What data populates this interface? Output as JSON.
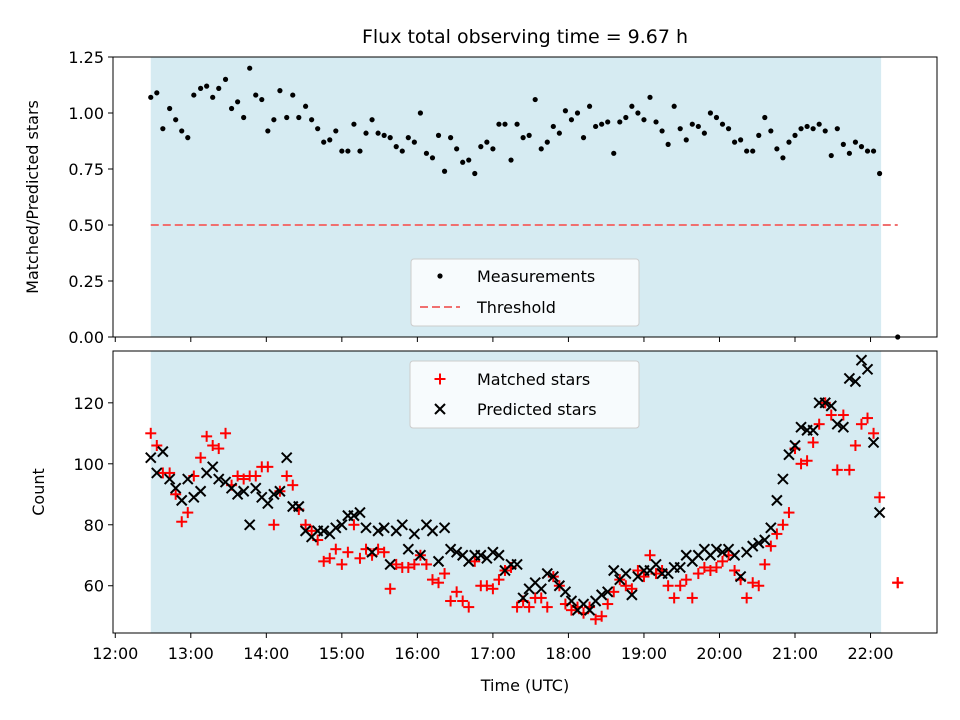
{
  "chart_data": [
    {
      "type": "scatter",
      "title": "Flux total observing time = 9.67 h",
      "xlabel": "",
      "ylabel": "Matched/Predicted stars",
      "ylim": [
        0,
        1.25
      ],
      "yticks": [
        "0.00",
        "0.25",
        "0.50",
        "0.75",
        "1.00",
        "1.25"
      ],
      "xlim_hours": [
        11.97,
        22.88
      ],
      "observing_window_hours": [
        12.47,
        22.14
      ],
      "legend_position": "lower-center",
      "threshold": 0.5,
      "series": [
        {
          "name": "Measurements",
          "color": "#000000",
          "marker": "dot",
          "x": [
            12.47,
            12.55,
            12.63,
            12.72,
            12.8,
            12.88,
            12.96,
            13.04,
            13.13,
            13.21,
            13.29,
            13.37,
            13.46,
            13.54,
            13.62,
            13.7,
            13.78,
            13.86,
            13.94,
            14.02,
            14.1,
            14.18,
            14.27,
            14.35,
            14.43,
            14.52,
            14.6,
            14.68,
            14.76,
            14.84,
            14.92,
            15.0,
            15.08,
            15.16,
            15.24,
            15.32,
            15.4,
            15.48,
            15.56,
            15.64,
            15.72,
            15.8,
            15.88,
            15.96,
            16.04,
            16.12,
            16.2,
            16.28,
            16.36,
            16.44,
            16.52,
            16.6,
            16.68,
            16.76,
            16.84,
            16.92,
            17.0,
            17.08,
            17.16,
            17.24,
            17.32,
            17.4,
            17.48,
            17.56,
            17.64,
            17.72,
            17.8,
            17.88,
            17.96,
            18.04,
            18.12,
            18.2,
            18.28,
            18.36,
            18.44,
            18.52,
            18.6,
            18.68,
            18.76,
            18.84,
            18.92,
            19.0,
            19.08,
            19.16,
            19.24,
            19.32,
            19.4,
            19.48,
            19.56,
            19.64,
            19.72,
            19.8,
            19.88,
            19.96,
            20.04,
            20.12,
            20.2,
            20.28,
            20.36,
            20.44,
            20.52,
            20.6,
            20.68,
            20.76,
            20.84,
            20.92,
            21.0,
            21.08,
            21.16,
            21.24,
            21.32,
            21.4,
            21.48,
            21.56,
            21.64,
            21.72,
            21.8,
            21.88,
            21.96,
            22.04,
            22.12,
            22.36
          ],
          "y": [
            1.07,
            1.09,
            0.93,
            1.02,
            0.97,
            0.92,
            0.89,
            1.08,
            1.11,
            1.12,
            1.07,
            1.11,
            1.15,
            1.02,
            1.05,
            0.98,
            1.2,
            1.08,
            1.06,
            0.92,
            0.97,
            1.1,
            0.98,
            1.08,
            0.98,
            1.03,
            0.97,
            0.93,
            0.87,
            0.88,
            0.92,
            0.83,
            0.83,
            0.95,
            0.83,
            0.91,
            0.97,
            0.91,
            0.9,
            0.89,
            0.85,
            0.83,
            0.89,
            0.87,
            1.0,
            0.82,
            0.8,
            0.9,
            0.74,
            0.89,
            0.84,
            0.78,
            0.79,
            0.73,
            0.85,
            0.87,
            0.84,
            0.95,
            0.95,
            0.79,
            0.95,
            0.89,
            0.9,
            1.06,
            0.84,
            0.87,
            0.94,
            0.91,
            1.01,
            0.97,
            1.0,
            0.89,
            1.03,
            0.94,
            0.95,
            0.96,
            0.82,
            0.96,
            0.98,
            1.03,
            1.0,
            0.97,
            1.07,
            0.96,
            0.92,
            0.86,
            1.03,
            0.93,
            0.88,
            0.95,
            0.94,
            0.91,
            1.0,
            0.98,
            0.95,
            0.93,
            0.87,
            0.88,
            0.83,
            0.83,
            0.9,
            0.98,
            0.92,
            0.84,
            0.8,
            0.87,
            0.9,
            0.93,
            0.94,
            0.93,
            0.95,
            0.92,
            0.81,
            0.93,
            0.86,
            0.82,
            0.87,
            0.85,
            0.83,
            0.83,
            0.73,
            0.0
          ]
        },
        {
          "name": "Threshold",
          "color": "#f07070",
          "style": "dashed",
          "x": [
            12.47,
            22.36
          ],
          "y": [
            0.5,
            0.5
          ]
        }
      ]
    },
    {
      "type": "scatter",
      "title": "",
      "xlabel": "Time (UTC)",
      "ylabel": "Count",
      "ylim": [
        44.5,
        137
      ],
      "yticks": [
        "60",
        "80",
        "100",
        "120"
      ],
      "xlim_hours": [
        11.97,
        22.88
      ],
      "xticks": [
        "12:00",
        "13:00",
        "14:00",
        "15:00",
        "16:00",
        "17:00",
        "18:00",
        "19:00",
        "20:00",
        "21:00",
        "22:00"
      ],
      "observing_window_hours": [
        12.47,
        22.14
      ],
      "legend_position": "upper-center",
      "series": [
        {
          "name": "Matched stars",
          "color": "#ff0000",
          "marker": "plus",
          "x": [
            12.47,
            12.55,
            12.63,
            12.72,
            12.8,
            12.88,
            12.96,
            13.04,
            13.13,
            13.21,
            13.29,
            13.37,
            13.46,
            13.54,
            13.62,
            13.7,
            13.78,
            13.86,
            13.94,
            14.02,
            14.1,
            14.18,
            14.27,
            14.35,
            14.43,
            14.52,
            14.6,
            14.68,
            14.76,
            14.84,
            14.92,
            15.0,
            15.08,
            15.16,
            15.24,
            15.32,
            15.4,
            15.48,
            15.56,
            15.64,
            15.72,
            15.8,
            15.88,
            15.96,
            16.04,
            16.12,
            16.2,
            16.28,
            16.36,
            16.44,
            16.52,
            16.6,
            16.68,
            16.76,
            16.84,
            16.92,
            17.0,
            17.08,
            17.16,
            17.24,
            17.32,
            17.4,
            17.48,
            17.56,
            17.64,
            17.72,
            17.8,
            17.88,
            17.96,
            18.04,
            18.12,
            18.2,
            18.28,
            18.36,
            18.44,
            18.52,
            18.6,
            18.68,
            18.76,
            18.84,
            18.92,
            19.0,
            19.08,
            19.16,
            19.24,
            19.32,
            19.4,
            19.48,
            19.56,
            19.64,
            19.72,
            19.8,
            19.88,
            19.96,
            20.04,
            20.12,
            20.2,
            20.28,
            20.36,
            20.44,
            20.52,
            20.6,
            20.68,
            20.76,
            20.84,
            20.92,
            21.0,
            21.08,
            21.16,
            21.24,
            21.32,
            21.4,
            21.48,
            21.56,
            21.64,
            21.72,
            21.8,
            21.88,
            21.96,
            22.04,
            22.12,
            22.36
          ],
          "y": [
            110,
            106,
            97,
            97,
            90,
            81,
            84,
            96,
            102,
            109,
            106,
            105,
            110,
            93,
            96,
            95,
            96,
            96,
            99,
            99,
            80,
            91,
            96,
            93,
            85,
            80,
            78,
            75,
            68,
            69,
            72,
            67,
            71,
            80,
            69,
            72,
            70,
            72,
            71,
            59,
            67,
            66,
            66,
            67,
            70,
            67,
            62,
            61,
            64,
            55,
            58,
            55,
            53,
            68,
            60,
            60,
            59,
            62,
            65,
            66,
            53,
            55,
            53,
            56,
            56,
            53,
            63,
            60,
            54,
            52,
            53,
            51,
            53,
            49,
            50,
            54,
            58,
            62,
            60,
            59,
            65,
            63,
            70,
            64,
            65,
            60,
            56,
            60,
            62,
            56,
            64,
            66,
            65,
            66,
            68,
            70,
            65,
            62,
            56,
            61,
            60,
            67,
            73,
            77,
            80,
            84,
            105,
            100,
            101,
            107,
            113,
            120,
            116,
            98,
            116,
            98,
            106,
            113,
            115,
            110,
            89,
            61
          ],
          "y_end_extra": 61
        },
        {
          "name": "Predicted stars",
          "color": "#000000",
          "marker": "x",
          "x": [
            12.47,
            12.55,
            12.63,
            12.72,
            12.8,
            12.88,
            12.96,
            13.04,
            13.13,
            13.21,
            13.29,
            13.37,
            13.46,
            13.54,
            13.62,
            13.7,
            13.78,
            13.86,
            13.94,
            14.02,
            14.1,
            14.18,
            14.27,
            14.35,
            14.43,
            14.52,
            14.6,
            14.68,
            14.76,
            14.84,
            14.92,
            15.0,
            15.08,
            15.16,
            15.24,
            15.32,
            15.4,
            15.48,
            15.56,
            15.64,
            15.72,
            15.8,
            15.88,
            15.96,
            16.04,
            16.12,
            16.2,
            16.28,
            16.36,
            16.44,
            16.52,
            16.6,
            16.68,
            16.76,
            16.84,
            16.92,
            17.0,
            17.08,
            17.16,
            17.24,
            17.32,
            17.4,
            17.48,
            17.56,
            17.64,
            17.72,
            17.8,
            17.88,
            17.96,
            18.04,
            18.12,
            18.2,
            18.28,
            18.36,
            18.44,
            18.52,
            18.6,
            18.68,
            18.76,
            18.84,
            18.92,
            19.0,
            19.08,
            19.16,
            19.24,
            19.32,
            19.4,
            19.48,
            19.56,
            19.64,
            19.72,
            19.8,
            19.88,
            19.96,
            20.04,
            20.12,
            20.2,
            20.28,
            20.36,
            20.44,
            20.52,
            20.6,
            20.68,
            20.76,
            20.84,
            20.92,
            21.0,
            21.08,
            21.16,
            21.24,
            21.32,
            21.4,
            21.48,
            21.56,
            21.64,
            21.72,
            21.8,
            21.88,
            21.96,
            22.04,
            22.12
          ],
          "y": [
            102,
            97,
            104,
            95,
            92,
            88,
            95,
            89,
            91,
            97,
            99,
            95,
            94,
            92,
            90,
            91,
            80,
            92,
            89,
            87,
            90,
            91,
            102,
            86,
            86,
            78,
            76,
            78,
            78,
            77,
            79,
            80,
            83,
            83,
            84,
            79,
            71,
            78,
            79,
            67,
            78,
            80,
            72,
            77,
            70,
            80,
            78,
            68,
            79,
            72,
            71,
            70,
            68,
            70,
            70,
            69,
            71,
            70,
            65,
            67,
            67,
            56,
            59,
            61,
            59,
            64,
            63,
            60,
            58,
            55,
            52,
            54,
            52,
            55,
            57,
            58,
            65,
            62,
            64,
            57,
            63,
            65,
            65,
            67,
            64,
            64,
            66,
            66,
            70,
            68,
            70,
            72,
            70,
            72,
            71,
            72,
            70,
            63,
            71,
            73,
            74,
            75,
            79,
            88,
            95,
            103,
            106,
            112,
            111,
            111,
            120,
            120,
            119,
            113,
            112,
            128,
            127,
            134,
            131,
            107,
            84
          ]
        }
      ]
    }
  ]
}
